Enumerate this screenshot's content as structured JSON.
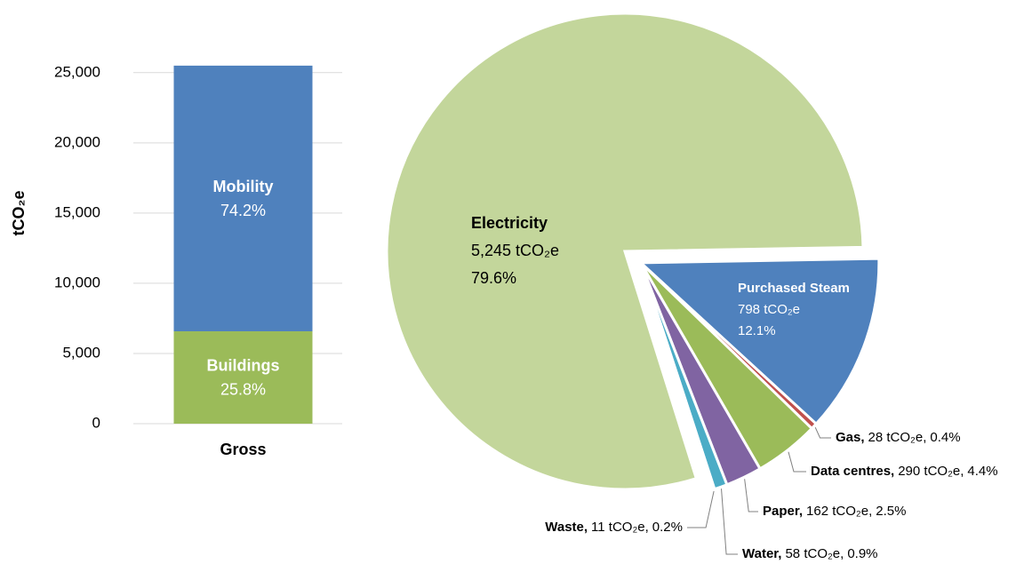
{
  "chart_data": [
    {
      "type": "bar",
      "stacked": true,
      "categories": [
        "Gross"
      ],
      "ylabel": "tCO₂e",
      "ylim": [
        0,
        26000
      ],
      "yticks": [
        0,
        {
          "value": 5000,
          "label": "5,000"
        },
        {
          "value": 10000,
          "label": "10,000"
        },
        {
          "value": 15000,
          "label": "15,000"
        },
        {
          "value": 20000,
          "label": "20,000"
        },
        {
          "value": 25000,
          "label": "25,000"
        }
      ],
      "grid": true,
      "series": [
        {
          "name": "Buildings",
          "color": "#9bbb59",
          "values": [
            6580
          ],
          "percent_labels": [
            "25.8%"
          ]
        },
        {
          "name": "Mobility",
          "color": "#4f81bd",
          "values": [
            18920
          ],
          "percent_labels": [
            "74.2%"
          ]
        }
      ]
    },
    {
      "type": "pie",
      "separator": ",",
      "categories": [
        "Electricity",
        "Purchased Steam",
        "Gas",
        "Data centres",
        "Paper",
        "Water",
        "Waste"
      ],
      "values": [
        5245,
        798,
        28,
        290,
        162,
        58,
        11
      ],
      "value_labels": [
        "5,245 tCO₂e",
        "798 tCO₂e",
        "28 tCO₂e",
        "290 tCO₂e",
        "162 tCO₂e",
        "58 tCO₂e",
        "11 tCO₂e"
      ],
      "percent_labels": [
        "79.6%",
        "12.1%",
        "0.4%",
        "4.4%",
        "2.5%",
        "0.9%",
        "0.2%"
      ],
      "colors": [
        "#c3d69b",
        "#4f81bd",
        "#c0504d",
        "#9bbb59",
        "#8064a2",
        "#4bacc6",
        "#f79646"
      ],
      "exploded": [
        false,
        true,
        true,
        true,
        true,
        true,
        true
      ]
    }
  ]
}
